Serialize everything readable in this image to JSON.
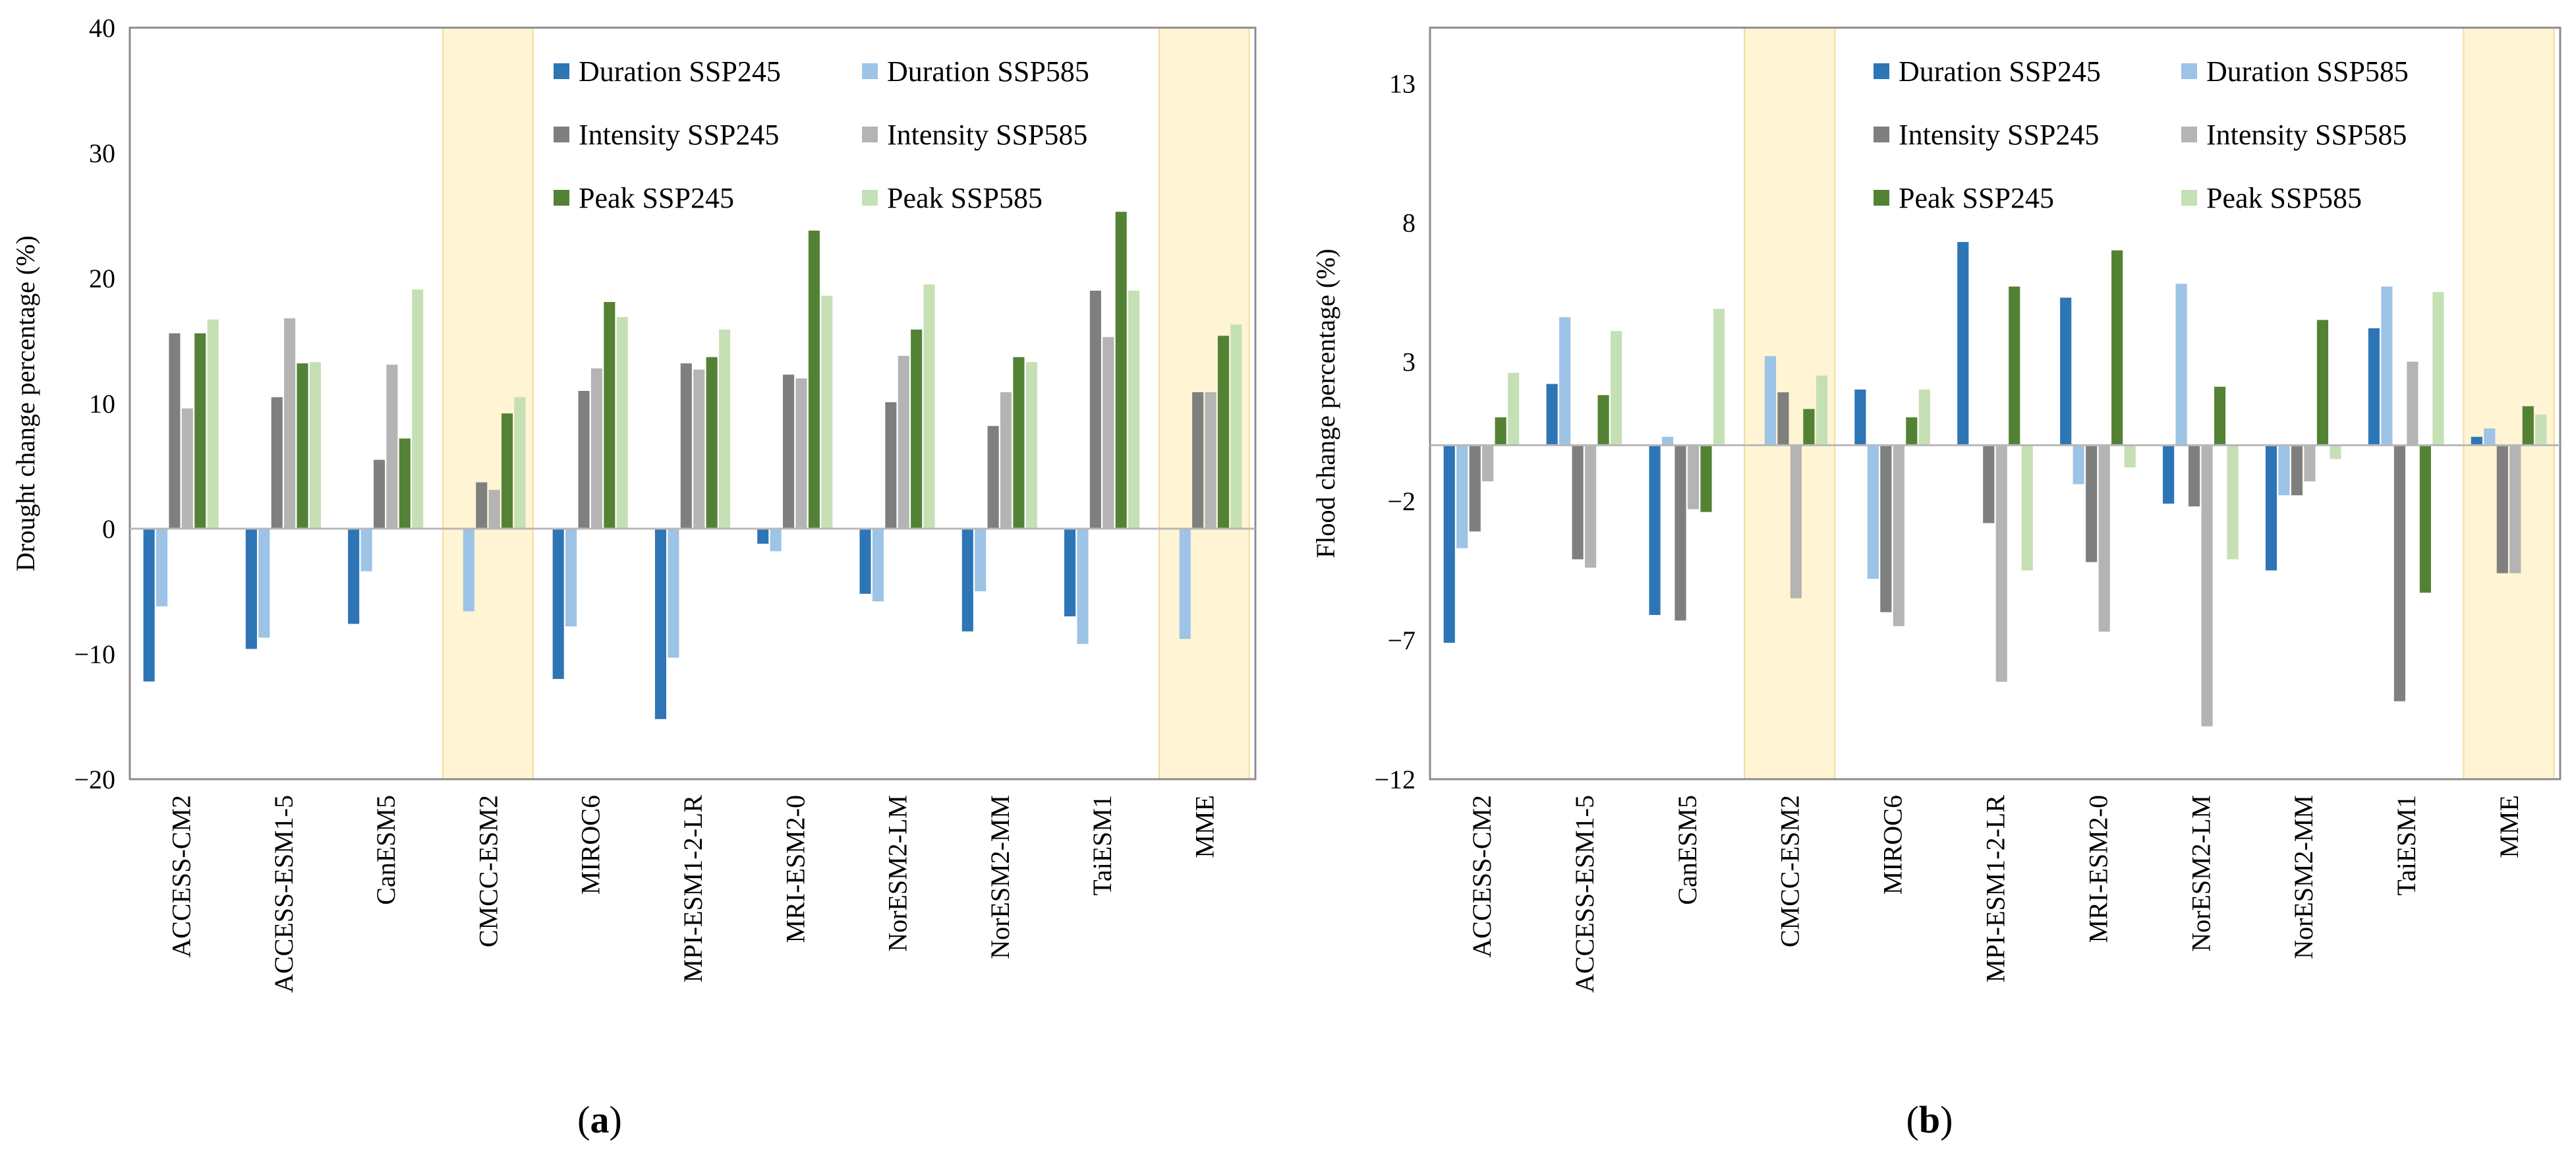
{
  "series_colors": {
    "Duration SSP245": "#2e75b6",
    "Duration SSP585": "#9dc3e6",
    "Intensity SSP245": "#7f7f7f",
    "Intensity SSP585": "#b4b4b4",
    "Peak SSP245": "#548235",
    "Peak SSP585": "#c5e0b4"
  },
  "highlight_color": "#fff2cc",
  "chart_data": [
    {
      "type": "bar",
      "panel_label": "a",
      "title": "",
      "xlabel": "",
      "ylabel": "Drought change percentage (%)",
      "ylim": [
        -20,
        40
      ],
      "yticks": [
        -20,
        -10,
        0,
        10,
        20,
        30,
        40
      ],
      "ytick_labels": [
        "−20",
        "−10",
        "0",
        "10",
        "20",
        "30",
        "40"
      ],
      "grid": false,
      "legend_position": "top-right",
      "categories": [
        "ACCESS-CM2",
        "ACCESS-ESM1-5",
        "CanESM5",
        "CMCC-ESM2",
        "MIROC6",
        "MPI-ESM1-2-LR",
        "MRI-ESM2-0",
        "NorESM2-LM",
        "NorESM2-MM",
        "TaiESM1",
        "MME"
      ],
      "highlighted_categories": [
        "CMCC-ESM2",
        "MME"
      ],
      "series": [
        {
          "name": "Duration SSP245",
          "values": [
            -12.2,
            -9.6,
            -7.6,
            0,
            -12.0,
            -15.2,
            -1.2,
            -5.2,
            -8.2,
            -7.0,
            0
          ]
        },
        {
          "name": "Duration SSP585",
          "values": [
            -6.2,
            -8.7,
            -3.4,
            -6.6,
            -7.8,
            -10.3,
            -1.8,
            -5.8,
            -5.0,
            -9.2,
            -8.8
          ]
        },
        {
          "name": "Intensity SSP245",
          "values": [
            15.6,
            10.5,
            5.5,
            3.7,
            11.0,
            13.2,
            12.3,
            10.1,
            8.2,
            19.0,
            10.9
          ]
        },
        {
          "name": "Intensity SSP585",
          "values": [
            9.6,
            16.8,
            13.1,
            3.1,
            12.8,
            12.7,
            12.0,
            13.8,
            10.9,
            15.3,
            10.9
          ]
        },
        {
          "name": "Peak SSP245",
          "values": [
            15.6,
            13.2,
            7.2,
            9.2,
            18.1,
            13.7,
            23.8,
            15.9,
            13.7,
            25.3,
            15.4
          ]
        },
        {
          "name": "Peak SSP585",
          "values": [
            16.7,
            13.3,
            19.1,
            10.5,
            16.9,
            15.9,
            18.6,
            19.5,
            13.3,
            19.0,
            16.3
          ]
        }
      ]
    },
    {
      "type": "bar",
      "panel_label": "b",
      "title": "",
      "xlabel": "",
      "ylabel": "Flood change percentage (%)",
      "ylim": [
        -12,
        15
      ],
      "yticks": [
        -12,
        -7,
        -2,
        3,
        8,
        13
      ],
      "ytick_labels": [
        "−12",
        "−7",
        "−2",
        "3",
        "8",
        "13"
      ],
      "grid": false,
      "legend_position": "top-right",
      "categories": [
        "ACCESS-CM2",
        "ACCESS-ESM1-5",
        "CanESM5",
        "CMCC-ESM2",
        "MIROC6",
        "MPI-ESM1-2-LR",
        "MRI-ESM2-0",
        "NorESM2-LM",
        "NorESM2-MM",
        "TaiESM1",
        "MME"
      ],
      "highlighted_categories": [
        "CMCC-ESM2",
        "MME"
      ],
      "series": [
        {
          "name": "Duration SSP245",
          "values": [
            -7.1,
            2.2,
            -6.1,
            0,
            2.0,
            7.3,
            5.3,
            -2.1,
            -4.5,
            4.2,
            0.3
          ]
        },
        {
          "name": "Duration SSP585",
          "values": [
            -3.7,
            4.6,
            0.3,
            3.2,
            -4.8,
            0,
            -1.4,
            5.8,
            -1.8,
            5.7,
            0.6
          ]
        },
        {
          "name": "Intensity SSP245",
          "values": [
            -3.1,
            -4.1,
            -6.3,
            1.9,
            -6.0,
            -2.8,
            -4.2,
            -2.2,
            -1.8,
            -9.2,
            -4.6
          ]
        },
        {
          "name": "Intensity SSP585",
          "values": [
            -1.3,
            -4.4,
            -2.3,
            -5.5,
            -6.5,
            -8.5,
            -6.7,
            -10.1,
            -1.3,
            3.0,
            -4.6
          ]
        },
        {
          "name": "Peak SSP245",
          "values": [
            1.0,
            1.8,
            -2.4,
            1.3,
            1.0,
            5.7,
            7.0,
            2.1,
            4.5,
            -5.3,
            1.4
          ]
        },
        {
          "name": "Peak SSP585",
          "values": [
            2.6,
            4.1,
            4.9,
            2.5,
            2.0,
            -4.5,
            -0.8,
            -4.1,
            -0.5,
            5.5,
            1.1
          ]
        }
      ]
    }
  ]
}
